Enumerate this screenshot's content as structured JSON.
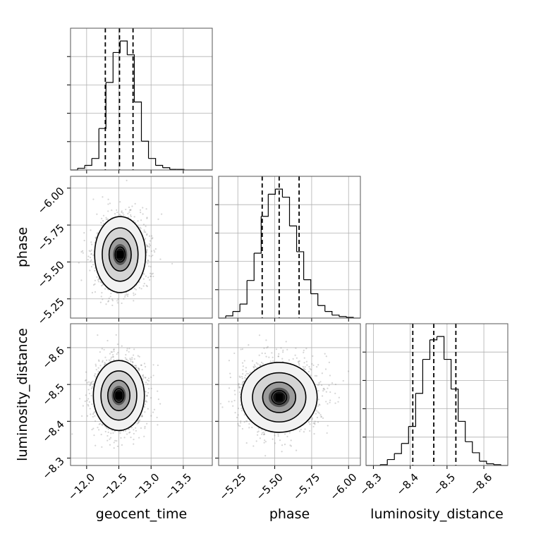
{
  "chart_data": {
    "type": "corner",
    "grid": true,
    "parameters": [
      {
        "label": "geocent_time",
        "range": [
          -13.95,
          -11.75
        ],
        "ticks": [
          -13.5,
          -13.0,
          -12.5,
          -12.0
        ],
        "tick_labels": [
          "−13.5",
          "−13.0",
          "−12.5",
          "−12.0"
        ],
        "quantiles": [
          -12.72,
          -12.51,
          -12.29
        ],
        "hist_bins": [
          -13.95,
          -13.84,
          -13.73,
          -13.62,
          -13.51,
          -13.4,
          -13.29,
          -13.18,
          -13.07,
          -12.96,
          -12.85,
          -12.74,
          -12.63,
          -12.52,
          -12.41,
          -12.3,
          -12.19,
          -12.08,
          -11.97,
          -11.86,
          -11.75
        ],
        "hist_counts": [
          0,
          0,
          0,
          0,
          1,
          1,
          4,
          8,
          20,
          50,
          118,
          200,
          224,
          204,
          152,
          72,
          20,
          8,
          3,
          0
        ]
      },
      {
        "label": "phase",
        "range": [
          -6.08,
          -5.12
        ],
        "ticks": [
          -6.0,
          -5.75,
          -5.5,
          -5.25
        ],
        "tick_labels": [
          "−6.00",
          "−5.75",
          "−5.50",
          "−5.25"
        ],
        "quantiles": [
          -5.665,
          -5.53,
          -5.415
        ],
        "hist_bins": [
          -6.08,
          -6.032,
          -5.984,
          -5.936,
          -5.888,
          -5.84,
          -5.792,
          -5.744,
          -5.696,
          -5.648,
          -5.6,
          -5.552,
          -5.504,
          -5.456,
          -5.408,
          -5.36,
          -5.312,
          -5.264,
          -5.216,
          -5.168,
          -5.12
        ],
        "hist_counts": [
          0,
          1,
          2,
          4,
          9,
          17,
          33,
          52,
          90,
          125,
          164,
          175,
          168,
          138,
          88,
          51,
          19,
          9,
          3,
          0
        ]
      },
      {
        "label": "luminosity_distance",
        "range": [
          -8.665,
          -8.28
        ],
        "ticks": [
          -8.6,
          -8.5,
          -8.4,
          -8.3
        ],
        "tick_labels": [
          "−8.6",
          "−8.5",
          "−8.4",
          "−8.3"
        ],
        "quantiles": [
          -8.524,
          -8.464,
          -8.407
        ],
        "hist_bins": [
          -8.665,
          -8.6458,
          -8.6265,
          -8.6072,
          -8.588,
          -8.5688,
          -8.5495,
          -8.5303,
          -8.511,
          -8.4918,
          -8.4725,
          -8.4533,
          -8.434,
          -8.4148,
          -8.3955,
          -8.3763,
          -8.357,
          -8.3378,
          -8.3185,
          -8.2993,
          -8.28
        ],
        "hist_counts": [
          0,
          1,
          2,
          5,
          15,
          28,
          52,
          90,
          125,
          152,
          148,
          125,
          85,
          46,
          26,
          14,
          7,
          1,
          0,
          0
        ]
      }
    ],
    "pairs": [
      {
        "x": "geocent_time",
        "y": "phase",
        "center": [
          -12.52,
          -5.55
        ],
        "sigma": [
          0.2,
          0.13
        ],
        "contour_levels": [
          0.39,
          0.86,
          1.39,
          1.98
        ]
      },
      {
        "x": "geocent_time",
        "y": "luminosity_distance",
        "center": [
          -12.5,
          -8.47
        ],
        "sigma": [
          0.2,
          0.048
        ],
        "contour_levels": [
          0.39,
          0.86,
          1.39,
          1.98
        ]
      },
      {
        "x": "phase",
        "y": "luminosity_distance",
        "center": [
          -5.53,
          -8.465
        ],
        "sigma": [
          0.13,
          0.048
        ],
        "contour_levels": [
          0.39,
          0.86,
          1.39,
          1.98
        ]
      }
    ]
  }
}
